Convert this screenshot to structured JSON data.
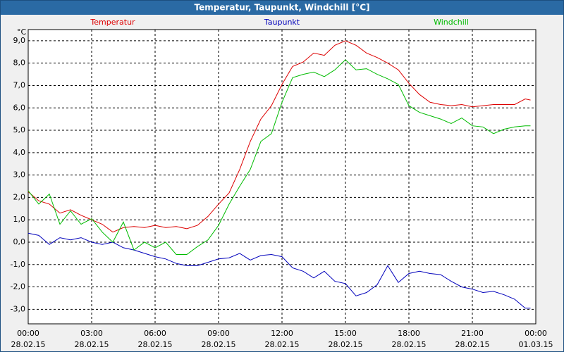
{
  "chart_data": {
    "type": "line",
    "title": "Temperatur, Taupunkt, Windchill [°C]",
    "y_unit": "°C",
    "x": [
      0,
      0.5,
      1,
      1.5,
      2,
      2.5,
      3,
      3.5,
      4,
      4.5,
      5,
      5.5,
      6,
      6.5,
      7,
      7.5,
      8,
      8.5,
      9,
      9.5,
      10,
      10.5,
      11,
      11.5,
      12,
      12.5,
      13,
      13.5,
      14,
      14.5,
      15,
      15.5,
      16,
      16.5,
      17,
      17.5,
      18,
      18.5,
      19,
      19.5,
      20,
      20.5,
      21,
      21.5,
      22,
      22.5,
      23,
      23.5,
      23.75
    ],
    "xlim": [
      0,
      24
    ],
    "xticks": [
      {
        "value": 0,
        "label": "00:00"
      },
      {
        "value": 3,
        "label": "03:00"
      },
      {
        "value": 6,
        "label": "06:00"
      },
      {
        "value": 9,
        "label": "09:00"
      },
      {
        "value": 12,
        "label": "12:00"
      },
      {
        "value": 15,
        "label": "15:00"
      },
      {
        "value": 18,
        "label": "18:00"
      },
      {
        "value": 21,
        "label": "21:00"
      },
      {
        "value": 24,
        "label": "00:00"
      }
    ],
    "xtick_dates": [
      "28.02.15",
      "28.02.15",
      "28.02.15",
      "28.02.15",
      "28.02.15",
      "28.02.15",
      "28.02.15",
      "28.02.15",
      "01.03.15"
    ],
    "ylim": [
      -3.65,
      9.5
    ],
    "yticks": [
      {
        "value": 9,
        "label": "9,0"
      },
      {
        "value": 8,
        "label": "8,0"
      },
      {
        "value": 7,
        "label": "7,0"
      },
      {
        "value": 6,
        "label": "6,0"
      },
      {
        "value": 5,
        "label": "5,0"
      },
      {
        "value": 4,
        "label": "4,0"
      },
      {
        "value": 3,
        "label": "3,0"
      },
      {
        "value": 2,
        "label": "2,0"
      },
      {
        "value": 1,
        "label": "1,0"
      },
      {
        "value": 0,
        "label": "0,0"
      },
      {
        "value": -1,
        "label": "-1,0"
      },
      {
        "value": -2,
        "label": "-2,0"
      },
      {
        "value": -3,
        "label": "-3,0"
      }
    ],
    "grid": true,
    "series": [
      {
        "name": "Temperatur",
        "color": "#dd0000",
        "values": [
          2.25,
          1.85,
          1.7,
          1.3,
          1.45,
          1.2,
          1.0,
          0.8,
          0.45,
          0.65,
          0.7,
          0.65,
          0.75,
          0.65,
          0.7,
          0.6,
          0.75,
          1.15,
          1.7,
          2.2,
          3.25,
          4.5,
          5.5,
          6.1,
          7.05,
          7.85,
          8.05,
          8.45,
          8.35,
          8.8,
          9.0,
          8.8,
          8.45,
          8.25,
          8.0,
          7.7,
          7.1,
          6.6,
          6.25,
          6.15,
          6.1,
          6.15,
          6.05,
          6.1,
          6.15,
          6.15,
          6.15,
          6.4,
          6.35
        ]
      },
      {
        "name": "Taupunkt",
        "color": "#0000bb",
        "values": [
          0.4,
          0.3,
          -0.1,
          0.2,
          0.1,
          0.2,
          0,
          -0.1,
          0,
          -0.25,
          -0.35,
          -0.5,
          -0.65,
          -0.75,
          -0.95,
          -1.05,
          -1.05,
          -0.9,
          -0.75,
          -0.7,
          -0.5,
          -0.8,
          -0.6,
          -0.55,
          -0.65,
          -1.15,
          -1.3,
          -1.6,
          -1.3,
          -1.75,
          -1.85,
          -2.4,
          -2.25,
          -1.9,
          -1.05,
          -1.8,
          -1.4,
          -1.3,
          -1.4,
          -1.45,
          -1.75,
          -2.0,
          -2.1,
          -2.25,
          -2.2,
          -2.35,
          -2.55,
          -2.95,
          -2.95
        ]
      },
      {
        "name": "Windchill",
        "color": "#00bb00",
        "values": [
          2.3,
          1.7,
          2.15,
          0.8,
          1.4,
          0.8,
          1.05,
          0.45,
          0,
          0.9,
          -0.35,
          0,
          -0.25,
          0,
          -0.55,
          -0.55,
          -0.2,
          0.1,
          0.75,
          1.7,
          2.5,
          3.25,
          4.5,
          4.85,
          6.25,
          7.35,
          7.5,
          7.6,
          7.4,
          7.7,
          8.15,
          7.7,
          7.75,
          7.5,
          7.3,
          7.05,
          6.1,
          5.8,
          5.65,
          5.5,
          5.3,
          5.55,
          5.2,
          5.15,
          4.85,
          5.05,
          5.15,
          5.2,
          5.2
        ]
      }
    ]
  }
}
